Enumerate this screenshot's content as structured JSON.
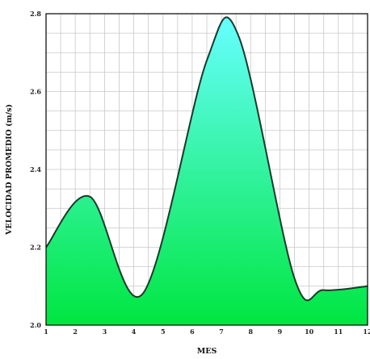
{
  "chart_data": {
    "type": "area",
    "xlabel": "MES",
    "ylabel": "VELOCIDAD PROMEDIO (m/s)",
    "xlim": [
      1,
      12
    ],
    "ylim": [
      2.0,
      2.8
    ],
    "x_ticks": [
      1,
      2,
      3,
      4,
      5,
      6,
      7,
      8,
      9,
      10,
      11,
      12
    ],
    "y_ticks": [
      2.0,
      2.2,
      2.4,
      2.6,
      2.8
    ],
    "y_tick_labels": [
      "2.0",
      "2.2",
      "2.4",
      "2.6",
      "2.8"
    ],
    "grid": true,
    "series": [
      {
        "x": [
          1,
          2.5,
          4.3,
          6.5,
          7.6,
          9.5,
          10.5,
          12
        ],
        "values": [
          2.2,
          2.33,
          2.08,
          2.68,
          2.74,
          2.12,
          2.09,
          2.1
        ]
      }
    ],
    "colors": {
      "fill_top": "#66ffff",
      "fill_bottom": "#00e640",
      "line": "#1a3a2a",
      "frame": "#000000"
    }
  }
}
